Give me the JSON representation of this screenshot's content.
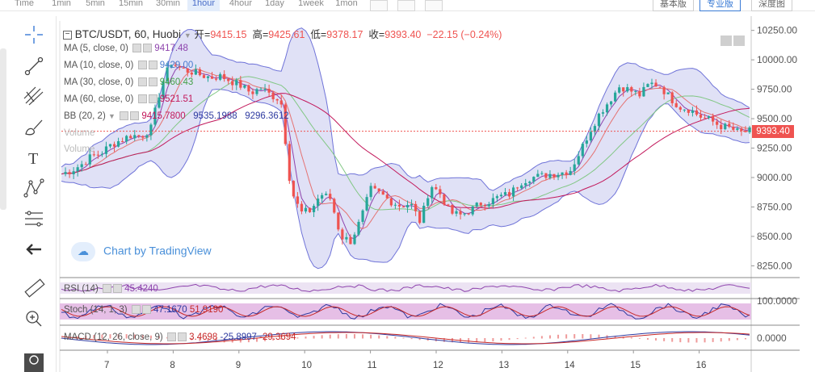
{
  "toolbar": {
    "intervals": [
      "Time",
      "1min",
      "5min",
      "15min",
      "30min",
      "1hour",
      "4hour",
      "1day",
      "1week",
      "1mon"
    ],
    "active_interval": "1hour",
    "view_buttons": [
      "基本版",
      "专业版",
      "深度图"
    ],
    "active_view": "专业版"
  },
  "header": {
    "symbol_line": "BTC/USDT, 60, Huobi",
    "open_label": "开=",
    "open_value": "9415.15",
    "high_label": "高=",
    "high_value": "9425.61",
    "low_label": "低=",
    "low_value": "9378.17",
    "close_label": "收=",
    "close_value": "9393.40",
    "change": "−22.15 (−0.24%)"
  },
  "indicators": {
    "ma5": {
      "label": "MA (5, close, 0)",
      "value": "9417.48"
    },
    "ma10": {
      "label": "MA (10, close, 0)",
      "value": "9429.00"
    },
    "ma30": {
      "label": "MA (30, close, 0)",
      "value": "9460.43"
    },
    "ma60": {
      "label": "MA (60, close, 0)",
      "value": "9521.51"
    },
    "bb": {
      "label": "BB (20, 2)",
      "mid": "9415.7800",
      "upper": "9535.1988",
      "lower": "9296.3612"
    },
    "vol1": "Volume",
    "vol2": "Volume",
    "rsi": {
      "label": "RSI (14)",
      "value": "45.4240"
    },
    "stoch": {
      "label": "Stoch (14, 1, 3)",
      "k": "47.1670",
      "d": "51.9190"
    },
    "macd": {
      "label": "MACD (12, 26, close, 9)",
      "hist": "3.4698",
      "macd": "-25.8997",
      "signal": "-29.3694"
    }
  },
  "watermark": "Chart by TradingView",
  "price_axis": {
    "ticks": [
      "10250.00",
      "10000.00",
      "9750.00",
      "9500.00",
      "9250.00",
      "9000.00",
      "8750.00",
      "8500.00",
      "8250.00"
    ],
    "last_price": "9393.40"
  },
  "rsi_axis": "",
  "stoch_axis": "100.0000",
  "macd_axis": "0.0000",
  "colors": {
    "up": "#26a69a",
    "down": "#ef5350",
    "bb_fill": "#c6c8ee",
    "bb_line": "#6f73d8"
  },
  "chart_data": {
    "type": "candlestick",
    "x_ticks": [
      "7",
      "8",
      "9",
      "10",
      "11",
      "12",
      "13",
      "14",
      "15",
      "16"
    ],
    "ylim": [
      8150,
      10330
    ],
    "candles_close_path": [
      [
        0,
        9030
      ],
      [
        6,
        9060
      ],
      [
        12,
        9110
      ],
      [
        18,
        9180
      ],
      [
        24,
        9210
      ],
      [
        30,
        9280
      ],
      [
        36,
        9320
      ],
      [
        42,
        9360
      ],
      [
        48,
        9350
      ],
      [
        54,
        9420
      ],
      [
        60,
        9780
      ],
      [
        66,
        9980
      ],
      [
        72,
        9920
      ],
      [
        78,
        9900
      ],
      [
        84,
        9870
      ],
      [
        90,
        9850
      ],
      [
        96,
        9860
      ],
      [
        102,
        9820
      ],
      [
        108,
        9780
      ],
      [
        114,
        9720
      ],
      [
        120,
        9760
      ],
      [
        126,
        9700
      ],
      [
        132,
        9660
      ],
      [
        138,
        8900
      ],
      [
        144,
        8700
      ],
      [
        150,
        8720
      ],
      [
        156,
        8860
      ],
      [
        162,
        8820
      ],
      [
        168,
        8500
      ],
      [
        174,
        8460
      ],
      [
        180,
        8640
      ],
      [
        186,
        8900
      ],
      [
        192,
        8860
      ],
      [
        198,
        8800
      ],
      [
        204,
        8760
      ],
      [
        210,
        8780
      ],
      [
        216,
        8620
      ],
      [
        222,
        8940
      ],
      [
        228,
        8860
      ],
      [
        234,
        8700
      ],
      [
        240,
        8680
      ],
      [
        246,
        8720
      ],
      [
        252,
        8780
      ],
      [
        258,
        8800
      ],
      [
        264,
        8840
      ],
      [
        270,
        8860
      ],
      [
        276,
        8960
      ],
      [
        282,
        9000
      ],
      [
        288,
        9010
      ],
      [
        294,
        9030
      ],
      [
        300,
        9040
      ],
      [
        306,
        9060
      ],
      [
        312,
        9220
      ],
      [
        318,
        9400
      ],
      [
        324,
        9550
      ],
      [
        330,
        9660
      ],
      [
        336,
        9780
      ],
      [
        342,
        9740
      ],
      [
        348,
        9700
      ],
      [
        354,
        9800
      ],
      [
        360,
        9780
      ],
      [
        366,
        9680
      ],
      [
        372,
        9600
      ],
      [
        378,
        9580
      ],
      [
        384,
        9520
      ],
      [
        390,
        9490
      ],
      [
        396,
        9440
      ],
      [
        402,
        9420
      ],
      [
        408,
        9380
      ],
      [
        414,
        9393
      ]
    ]
  }
}
